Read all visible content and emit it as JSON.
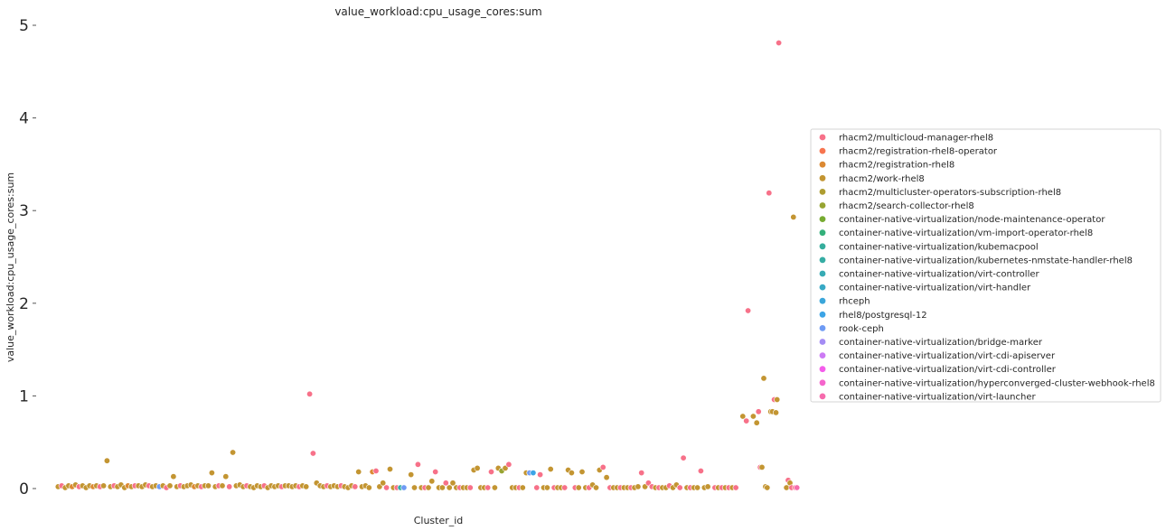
{
  "chart_data": {
    "type": "scatter",
    "title": "value_workload:cpu_usage_cores:sum",
    "xlabel": "Cluster_id",
    "ylabel": "value_workload:cpu_usage_cores:sum",
    "ylim": [
      0,
      5
    ],
    "yticks": [
      0,
      1,
      2,
      3,
      4,
      5
    ],
    "x_ticks_shown": false,
    "grid": false,
    "legend_position": "right",
    "series": [
      {
        "name": "rhacm2/multicloud-manager-rhel8",
        "color": "#f77189"
      },
      {
        "name": "rhacm2/registration-rhel8-operator",
        "color": "#f7754f"
      },
      {
        "name": "rhacm2/registration-rhel8",
        "color": "#dc8932"
      },
      {
        "name": "rhacm2/work-rhel8",
        "color": "#c39532"
      },
      {
        "name": "rhacm2/multicluster-operators-subscription-rhel8",
        "color": "#ae9d31"
      },
      {
        "name": "rhacm2/search-collector-rhel8",
        "color": "#97a431"
      },
      {
        "name": "container-native-virtualization/node-maintenance-operator",
        "color": "#77ab31"
      },
      {
        "name": "container-native-virtualization/vm-import-operator-rhel8",
        "color": "#33b07a"
      },
      {
        "name": "container-native-virtualization/kubemacpool",
        "color": "#35ad9c"
      },
      {
        "name": "container-native-virtualization/kubernetes-nmstate-handler-rhel8",
        "color": "#36ada4"
      },
      {
        "name": "container-native-virtualization/virt-controller",
        "color": "#37abb4"
      },
      {
        "name": "container-native-virtualization/virt-handler",
        "color": "#38a9c5"
      },
      {
        "name": "rhceph",
        "color": "#3aa6da"
      },
      {
        "name": "rhel8/postgresql-12",
        "color": "#3ca4e6"
      },
      {
        "name": "rook-ceph",
        "color": "#6e9bf4"
      },
      {
        "name": "container-native-virtualization/bridge-marker",
        "color": "#a48cf4"
      },
      {
        "name": "container-native-virtualization/virt-cdi-apiserver",
        "color": "#cc7af4"
      },
      {
        "name": "container-native-virtualization/virt-cdi-controller",
        "color": "#f45deb"
      },
      {
        "name": "container-native-virtualization/hyperconverged-cluster-webhook-rhel8",
        "color": "#f565cc"
      },
      {
        "name": "container-native-virtualization/virt-launcher",
        "color": "#f66bad"
      }
    ],
    "points": [
      {
        "x": 1,
        "y": 0.02,
        "s": 3
      },
      {
        "x": 2,
        "y": 0.03,
        "s": 0
      },
      {
        "x": 3,
        "y": 0.01,
        "s": 3
      },
      {
        "x": 4,
        "y": 0.03,
        "s": 3
      },
      {
        "x": 5,
        "y": 0.02,
        "s": 2
      },
      {
        "x": 6,
        "y": 0.04,
        "s": 3
      },
      {
        "x": 7,
        "y": 0.02,
        "s": 0
      },
      {
        "x": 8,
        "y": 0.03,
        "s": 3
      },
      {
        "x": 9,
        "y": 0.01,
        "s": 3
      },
      {
        "x": 10,
        "y": 0.03,
        "s": 3
      },
      {
        "x": 11,
        "y": 0.02,
        "s": 2
      },
      {
        "x": 12,
        "y": 0.03,
        "s": 3
      },
      {
        "x": 13,
        "y": 0.02,
        "s": 0
      },
      {
        "x": 14,
        "y": 0.03,
        "s": 3
      },
      {
        "x": 15,
        "y": 0.3,
        "s": 3
      },
      {
        "x": 16,
        "y": 0.02,
        "s": 3
      },
      {
        "x": 17,
        "y": 0.03,
        "s": 0
      },
      {
        "x": 18,
        "y": 0.02,
        "s": 3
      },
      {
        "x": 19,
        "y": 0.04,
        "s": 3
      },
      {
        "x": 20,
        "y": 0.01,
        "s": 3
      },
      {
        "x": 21,
        "y": 0.03,
        "s": 2
      },
      {
        "x": 22,
        "y": 0.02,
        "s": 3
      },
      {
        "x": 23,
        "y": 0.03,
        "s": 0
      },
      {
        "x": 24,
        "y": 0.03,
        "s": 3
      },
      {
        "x": 25,
        "y": 0.02,
        "s": 3
      },
      {
        "x": 26,
        "y": 0.04,
        "s": 3
      },
      {
        "x": 27,
        "y": 0.03,
        "s": 0
      },
      {
        "x": 28,
        "y": 0.02,
        "s": 3
      },
      {
        "x": 29,
        "y": 0.03,
        "s": 3
      },
      {
        "x": 30,
        "y": 0.02,
        "s": 14
      },
      {
        "x": 31,
        "y": 0.03,
        "s": 3
      },
      {
        "x": 32,
        "y": 0.01,
        "s": 0
      },
      {
        "x": 33,
        "y": 0.03,
        "s": 3
      },
      {
        "x": 34,
        "y": 0.13,
        "s": 3
      },
      {
        "x": 35,
        "y": 0.02,
        "s": 3
      },
      {
        "x": 36,
        "y": 0.03,
        "s": 0
      },
      {
        "x": 37,
        "y": 0.02,
        "s": 3
      },
      {
        "x": 38,
        "y": 0.03,
        "s": 3
      },
      {
        "x": 39,
        "y": 0.04,
        "s": 3
      },
      {
        "x": 40,
        "y": 0.02,
        "s": 2
      },
      {
        "x": 41,
        "y": 0.03,
        "s": 3
      },
      {
        "x": 42,
        "y": 0.02,
        "s": 0
      },
      {
        "x": 43,
        "y": 0.03,
        "s": 3
      },
      {
        "x": 44,
        "y": 0.03,
        "s": 3
      },
      {
        "x": 45,
        "y": 0.17,
        "s": 3
      },
      {
        "x": 46,
        "y": 0.02,
        "s": 3
      },
      {
        "x": 47,
        "y": 0.03,
        "s": 0
      },
      {
        "x": 48,
        "y": 0.03,
        "s": 3
      },
      {
        "x": 49,
        "y": 0.13,
        "s": 3
      },
      {
        "x": 50,
        "y": 0.02,
        "s": 0
      },
      {
        "x": 51,
        "y": 0.39,
        "s": 3
      },
      {
        "x": 52,
        "y": 0.03,
        "s": 3
      },
      {
        "x": 53,
        "y": 0.04,
        "s": 3
      },
      {
        "x": 54,
        "y": 0.02,
        "s": 3
      },
      {
        "x": 55,
        "y": 0.03,
        "s": 0
      },
      {
        "x": 56,
        "y": 0.02,
        "s": 3
      },
      {
        "x": 57,
        "y": 0.01,
        "s": 3
      },
      {
        "x": 58,
        "y": 0.03,
        "s": 3
      },
      {
        "x": 59,
        "y": 0.02,
        "s": 3
      },
      {
        "x": 60,
        "y": 0.03,
        "s": 0
      },
      {
        "x": 61,
        "y": 0.01,
        "s": 3
      },
      {
        "x": 62,
        "y": 0.03,
        "s": 3
      },
      {
        "x": 63,
        "y": 0.02,
        "s": 3
      },
      {
        "x": 64,
        "y": 0.03,
        "s": 3
      },
      {
        "x": 65,
        "y": 0.02,
        "s": 0
      },
      {
        "x": 66,
        "y": 0.03,
        "s": 3
      },
      {
        "x": 67,
        "y": 0.03,
        "s": 3
      },
      {
        "x": 68,
        "y": 0.02,
        "s": 3
      },
      {
        "x": 69,
        "y": 0.03,
        "s": 3
      },
      {
        "x": 70,
        "y": 0.02,
        "s": 0
      },
      {
        "x": 71,
        "y": 0.03,
        "s": 3
      },
      {
        "x": 72,
        "y": 0.02,
        "s": 3
      },
      {
        "x": 73,
        "y": 1.02,
        "s": 0
      },
      {
        "x": 74,
        "y": 0.38,
        "s": 0
      },
      {
        "x": 75,
        "y": 0.06,
        "s": 3
      },
      {
        "x": 76,
        "y": 0.03,
        "s": 3
      },
      {
        "x": 77,
        "y": 0.02,
        "s": 3
      },
      {
        "x": 78,
        "y": 0.03,
        "s": 0
      },
      {
        "x": 79,
        "y": 0.02,
        "s": 3
      },
      {
        "x": 80,
        "y": 0.03,
        "s": 3
      },
      {
        "x": 81,
        "y": 0.02,
        "s": 3
      },
      {
        "x": 82,
        "y": 0.03,
        "s": 0
      },
      {
        "x": 83,
        "y": 0.02,
        "s": 3
      },
      {
        "x": 84,
        "y": 0.01,
        "s": 3
      },
      {
        "x": 85,
        "y": 0.03,
        "s": 3
      },
      {
        "x": 86,
        "y": 0.02,
        "s": 0
      },
      {
        "x": 87,
        "y": 0.18,
        "s": 3
      },
      {
        "x": 88,
        "y": 0.02,
        "s": 3
      },
      {
        "x": 89,
        "y": 0.03,
        "s": 3
      },
      {
        "x": 90,
        "y": 0.01,
        "s": 3
      },
      {
        "x": 91,
        "y": 0.18,
        "s": 2
      },
      {
        "x": 92,
        "y": 0.19,
        "s": 0
      },
      {
        "x": 93,
        "y": 0.02,
        "s": 3
      },
      {
        "x": 94,
        "y": 0.06,
        "s": 3
      },
      {
        "x": 95,
        "y": 0.01,
        "s": 0
      },
      {
        "x": 96,
        "y": 0.21,
        "s": 3
      },
      {
        "x": 97,
        "y": 0.01,
        "s": 3
      },
      {
        "x": 98,
        "y": 0.01,
        "s": 0
      },
      {
        "x": 99,
        "y": 0.01,
        "s": 9
      },
      {
        "x": 100,
        "y": 0.01,
        "s": 14
      },
      {
        "x": 102,
        "y": 0.15,
        "s": 3
      },
      {
        "x": 103,
        "y": 0.01,
        "s": 3
      },
      {
        "x": 104,
        "y": 0.26,
        "s": 0
      },
      {
        "x": 105,
        "y": 0.01,
        "s": 3
      },
      {
        "x": 106,
        "y": 0.01,
        "s": 0
      },
      {
        "x": 107,
        "y": 0.01,
        "s": 3
      },
      {
        "x": 108,
        "y": 0.08,
        "s": 3
      },
      {
        "x": 109,
        "y": 0.18,
        "s": 0
      },
      {
        "x": 110,
        "y": 0.01,
        "s": 3
      },
      {
        "x": 111,
        "y": 0.01,
        "s": 3
      },
      {
        "x": 112,
        "y": 0.06,
        "s": 0
      },
      {
        "x": 113,
        "y": 0.01,
        "s": 3
      },
      {
        "x": 114,
        "y": 0.06,
        "s": 3
      },
      {
        "x": 115,
        "y": 0.01,
        "s": 3
      },
      {
        "x": 116,
        "y": 0.01,
        "s": 0
      },
      {
        "x": 117,
        "y": 0.01,
        "s": 3
      },
      {
        "x": 118,
        "y": 0.01,
        "s": 3
      },
      {
        "x": 119,
        "y": 0.01,
        "s": 0
      },
      {
        "x": 120,
        "y": 0.2,
        "s": 3
      },
      {
        "x": 121,
        "y": 0.22,
        "s": 3
      },
      {
        "x": 122,
        "y": 0.01,
        "s": 3
      },
      {
        "x": 123,
        "y": 0.01,
        "s": 3
      },
      {
        "x": 124,
        "y": 0.01,
        "s": 0
      },
      {
        "x": 125,
        "y": 0.18,
        "s": 0
      },
      {
        "x": 126,
        "y": 0.01,
        "s": 3
      },
      {
        "x": 127,
        "y": 0.22,
        "s": 3
      },
      {
        "x": 128,
        "y": 0.19,
        "s": 5
      },
      {
        "x": 129,
        "y": 0.22,
        "s": 3
      },
      {
        "x": 130,
        "y": 0.26,
        "s": 0
      },
      {
        "x": 131,
        "y": 0.01,
        "s": 3
      },
      {
        "x": 132,
        "y": 0.01,
        "s": 3
      },
      {
        "x": 133,
        "y": 0.01,
        "s": 0
      },
      {
        "x": 134,
        "y": 0.01,
        "s": 3
      },
      {
        "x": 135,
        "y": 0.17,
        "s": 3
      },
      {
        "x": 136,
        "y": 0.17,
        "s": 14
      },
      {
        "x": 137,
        "y": 0.17,
        "s": 13
      },
      {
        "x": 138,
        "y": 0.01,
        "s": 0
      },
      {
        "x": 139,
        "y": 0.15,
        "s": 0
      },
      {
        "x": 140,
        "y": 0.01,
        "s": 3
      },
      {
        "x": 141,
        "y": 0.01,
        "s": 3
      },
      {
        "x": 142,
        "y": 0.21,
        "s": 3
      },
      {
        "x": 143,
        "y": 0.01,
        "s": 0
      },
      {
        "x": 144,
        "y": 0.01,
        "s": 3
      },
      {
        "x": 145,
        "y": 0.01,
        "s": 3
      },
      {
        "x": 146,
        "y": 0.01,
        "s": 0
      },
      {
        "x": 147,
        "y": 0.2,
        "s": 3
      },
      {
        "x": 148,
        "y": 0.17,
        "s": 3
      },
      {
        "x": 149,
        "y": 0.01,
        "s": 0
      },
      {
        "x": 150,
        "y": 0.01,
        "s": 3
      },
      {
        "x": 151,
        "y": 0.18,
        "s": 3
      },
      {
        "x": 152,
        "y": 0.01,
        "s": 3
      },
      {
        "x": 153,
        "y": 0.01,
        "s": 0
      },
      {
        "x": 154,
        "y": 0.04,
        "s": 3
      },
      {
        "x": 155,
        "y": 0.01,
        "s": 3
      },
      {
        "x": 156,
        "y": 0.2,
        "s": 3
      },
      {
        "x": 157,
        "y": 0.23,
        "s": 0
      },
      {
        "x": 158,
        "y": 0.12,
        "s": 3
      },
      {
        "x": 159,
        "y": 0.01,
        "s": 0
      },
      {
        "x": 160,
        "y": 0.01,
        "s": 3
      },
      {
        "x": 161,
        "y": 0.01,
        "s": 3
      },
      {
        "x": 162,
        "y": 0.01,
        "s": 0
      },
      {
        "x": 163,
        "y": 0.01,
        "s": 3
      },
      {
        "x": 164,
        "y": 0.01,
        "s": 3
      },
      {
        "x": 165,
        "y": 0.01,
        "s": 0
      },
      {
        "x": 166,
        "y": 0.01,
        "s": 3
      },
      {
        "x": 167,
        "y": 0.02,
        "s": 3
      },
      {
        "x": 168,
        "y": 0.17,
        "s": 0
      },
      {
        "x": 169,
        "y": 0.02,
        "s": 3
      },
      {
        "x": 170,
        "y": 0.06,
        "s": 0
      },
      {
        "x": 171,
        "y": 0.02,
        "s": 0
      },
      {
        "x": 172,
        "y": 0.01,
        "s": 3
      },
      {
        "x": 173,
        "y": 0.01,
        "s": 0
      },
      {
        "x": 174,
        "y": 0.01,
        "s": 3
      },
      {
        "x": 175,
        "y": 0.01,
        "s": 3
      },
      {
        "x": 176,
        "y": 0.03,
        "s": 0
      },
      {
        "x": 177,
        "y": 0.01,
        "s": 3
      },
      {
        "x": 178,
        "y": 0.04,
        "s": 3
      },
      {
        "x": 179,
        "y": 0.01,
        "s": 0
      },
      {
        "x": 180,
        "y": 0.33,
        "s": 0
      },
      {
        "x": 181,
        "y": 0.01,
        "s": 3
      },
      {
        "x": 182,
        "y": 0.01,
        "s": 0
      },
      {
        "x": 183,
        "y": 0.01,
        "s": 3
      },
      {
        "x": 184,
        "y": 0.01,
        "s": 3
      },
      {
        "x": 185,
        "y": 0.19,
        "s": 0
      },
      {
        "x": 186,
        "y": 0.01,
        "s": 3
      },
      {
        "x": 187,
        "y": 0.02,
        "s": 3
      },
      {
        "x": 189,
        "y": 0.01,
        "s": 0
      },
      {
        "x": 190,
        "y": 0.01,
        "s": 3
      },
      {
        "x": 191,
        "y": 0.01,
        "s": 0
      },
      {
        "x": 192,
        "y": 0.01,
        "s": 3
      },
      {
        "x": 193,
        "y": 0.01,
        "s": 0
      },
      {
        "x": 194,
        "y": 0.01,
        "s": 3
      },
      {
        "x": 195,
        "y": 0.01,
        "s": 0
      },
      {
        "x": 197,
        "y": 0.78,
        "s": 3
      },
      {
        "x": 198,
        "y": 0.73,
        "s": 0
      },
      {
        "x": 198.5,
        "y": 1.92,
        "s": 0
      },
      {
        "x": 200,
        "y": 0.78,
        "s": 3
      },
      {
        "x": 201,
        "y": 0.71,
        "s": 3
      },
      {
        "x": 201.5,
        "y": 0.83,
        "s": 0
      },
      {
        "x": 202,
        "y": 0.23,
        "s": 0
      },
      {
        "x": 202.5,
        "y": 0.23,
        "s": 3
      },
      {
        "x": 203,
        "y": 1.19,
        "s": 3
      },
      {
        "x": 203.5,
        "y": 0.02,
        "s": 3
      },
      {
        "x": 204,
        "y": 0.01,
        "s": 3
      },
      {
        "x": 204.5,
        "y": 3.19,
        "s": 0
      },
      {
        "x": 205,
        "y": 0.83,
        "s": 3
      },
      {
        "x": 205.5,
        "y": 0.83,
        "s": 3
      },
      {
        "x": 206,
        "y": 0.96,
        "s": 0
      },
      {
        "x": 206.5,
        "y": 0.82,
        "s": 3
      },
      {
        "x": 206.8,
        "y": 0.96,
        "s": 3
      },
      {
        "x": 207.3,
        "y": 4.81,
        "s": 0
      },
      {
        "x": 209.5,
        "y": 0.01,
        "s": 3
      },
      {
        "x": 210,
        "y": 0.09,
        "s": 0
      },
      {
        "x": 210.5,
        "y": 0.06,
        "s": 3
      },
      {
        "x": 211,
        "y": 0.01,
        "s": 0
      },
      {
        "x": 211.5,
        "y": 2.93,
        "s": 3
      },
      {
        "x": 212,
        "y": 0.01,
        "s": 0
      },
      {
        "x": 212.5,
        "y": 0.01,
        "s": 19
      }
    ]
  }
}
